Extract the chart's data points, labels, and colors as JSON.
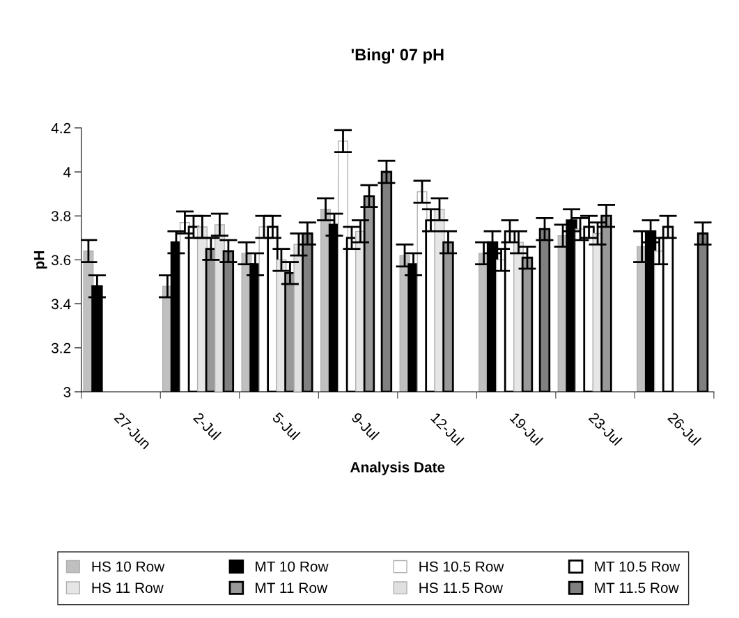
{
  "chart_data": {
    "type": "bar",
    "title": "'Bing' 07 pH",
    "xlabel": "Analysis Date",
    "ylabel": "pH",
    "categories": [
      "27-Jun",
      "2-Jul",
      "5-Jul",
      "9-Jul",
      "12-Jul",
      "19-Jul",
      "23-Jul",
      "26-Jul"
    ],
    "ylim": [
      3,
      4.2
    ],
    "yticks": [
      3,
      3.2,
      3.4,
      3.6,
      3.8,
      4,
      4.2
    ],
    "grid": false,
    "legend": "bottom",
    "series": [
      {
        "name": "HS 10 Row",
        "color": "#c0c0c0",
        "values": [
          3.64,
          3.48,
          3.63,
          3.83,
          3.62,
          3.63,
          3.71,
          3.66
        ],
        "errors": [
          0.05,
          0.05,
          0.05,
          0.05,
          0.05,
          0.05,
          0.05,
          0.07
        ]
      },
      {
        "name": "MT 10 Row",
        "color": "#000000",
        "values": [
          3.48,
          3.68,
          3.58,
          3.76,
          3.58,
          3.68,
          3.78,
          3.73
        ],
        "errors": [
          0.05,
          0.05,
          0.05,
          0.05,
          0.05,
          0.05,
          0.05,
          0.05
        ]
      },
      {
        "name": "HS 10.5 Row",
        "color": "#ffffff",
        "values": [
          null,
          3.77,
          3.75,
          4.14,
          3.91,
          3.6,
          3.74,
          3.64
        ],
        "errors": [
          null,
          0.05,
          0.05,
          0.05,
          0.05,
          0.05,
          0.05,
          0.06
        ]
      },
      {
        "name": "MT 10.5 Row",
        "color": "#ffffff",
        "values": [
          null,
          3.75,
          3.75,
          3.7,
          3.78,
          3.73,
          3.75,
          3.75
        ],
        "errors": [
          null,
          0.05,
          0.05,
          0.05,
          0.05,
          0.05,
          0.05,
          0.05
        ]
      },
      {
        "name": "HS 11 Row",
        "color": "#e6e6e6",
        "values": [
          null,
          3.75,
          3.6,
          3.73,
          3.83,
          3.68,
          3.72,
          null
        ],
        "errors": [
          null,
          0.05,
          0.05,
          0.05,
          0.05,
          0.05,
          0.05,
          null
        ]
      },
      {
        "name": "MT 11 Row",
        "color": "#999999",
        "values": [
          null,
          3.65,
          3.54,
          3.89,
          3.68,
          3.61,
          3.8,
          null
        ],
        "errors": [
          null,
          0.05,
          0.05,
          0.05,
          0.05,
          0.05,
          0.05,
          null
        ]
      },
      {
        "name": "HS 11.5 Row",
        "color": "#e0e0e0",
        "values": [
          null,
          3.76,
          3.67,
          null,
          null,
          null,
          null,
          null
        ],
        "errors": [
          null,
          0.05,
          0.05,
          null,
          null,
          null,
          null,
          null
        ]
      },
      {
        "name": "MT 11.5 Row",
        "color": "#808080",
        "values": [
          null,
          3.64,
          3.72,
          4.0,
          null,
          3.74,
          null,
          3.72
        ],
        "errors": [
          null,
          0.05,
          0.05,
          0.05,
          null,
          0.05,
          null,
          0.05
        ]
      }
    ]
  }
}
